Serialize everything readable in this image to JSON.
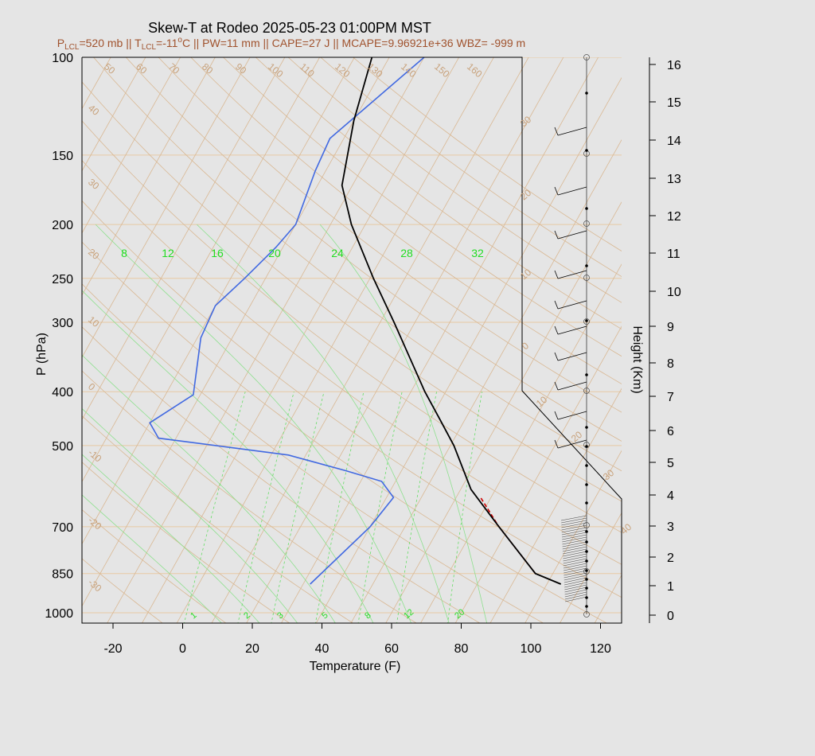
{
  "title": "Skew-T at Rodeo 2025-05-23 01:00PM MST",
  "subtitle": {
    "plcl_label": "P",
    "plcl_sub": "LCL",
    "plcl_val": "=520 mb || T",
    "tlcl_sub": "LCL",
    "tlcl_val": "=-11",
    "tlcl_sup": "o",
    "rest": "C || PW=11 mm || CAPE=27 J || MCAPE=9.96921e+36 WBZ= -999 m"
  },
  "colors": {
    "background": "#e5e5e5",
    "temperature": "#000000",
    "dewpoint": "#4169e1",
    "parcel": "#cc0000",
    "mixing_ratio": "#22dd22",
    "adiabats": "#d2b48c",
    "subtitle": "#a0522d"
  },
  "chart_data": {
    "type": "skew-t",
    "title": "Skew-T at Rodeo 2025-05-23 01:00PM MST",
    "xlabel": "Temperature (F)",
    "ylabel": "P (hPa)",
    "y2label": "Height (Km)",
    "x_ticks": [
      "-20",
      "0",
      "20",
      "40",
      "60",
      "80",
      "100",
      "120"
    ],
    "x_tick_values": [
      -20,
      0,
      20,
      40,
      60,
      80,
      100,
      120
    ],
    "p_ticks": [
      "100",
      "150",
      "200",
      "250",
      "300",
      "400",
      "500",
      "700",
      "850",
      "1000"
    ],
    "p_tick_values": [
      100,
      150,
      200,
      250,
      300,
      400,
      500,
      700,
      850,
      1000
    ],
    "height_ticks": [
      "0",
      "1",
      "2",
      "3",
      "4",
      "5",
      "6",
      "7",
      "8",
      "9",
      "10",
      "11",
      "12",
      "13",
      "14",
      "15",
      "16"
    ],
    "temperature_profile": [
      {
        "p": 888,
        "t": 104
      },
      {
        "p": 850,
        "t": 95
      },
      {
        "p": 700,
        "t": 77
      },
      {
        "p": 600,
        "t": 63
      },
      {
        "p": 500,
        "t": 51
      },
      {
        "p": 450,
        "t": 43
      },
      {
        "p": 400,
        "t": 34
      },
      {
        "p": 300,
        "t": 14
      },
      {
        "p": 250,
        "t": 1
      },
      {
        "p": 200,
        "t": -14
      },
      {
        "p": 170,
        "t": -23
      },
      {
        "p": 130,
        "t": -30
      },
      {
        "p": 100,
        "t": -35
      }
    ],
    "dewpoint_profile": [
      {
        "p": 888,
        "t": 32
      },
      {
        "p": 700,
        "t": 40
      },
      {
        "p": 620,
        "t": 42
      },
      {
        "p": 580,
        "t": 36
      },
      {
        "p": 555,
        "t": 24
      },
      {
        "p": 520,
        "t": 5
      },
      {
        "p": 485,
        "t": -35
      },
      {
        "p": 455,
        "t": -40
      },
      {
        "p": 405,
        "t": -32
      },
      {
        "p": 320,
        "t": -39
      },
      {
        "p": 280,
        "t": -40
      },
      {
        "p": 250,
        "t": -36
      },
      {
        "p": 220,
        "t": -32
      },
      {
        "p": 200,
        "t": -30
      },
      {
        "p": 160,
        "t": -33
      },
      {
        "p": 140,
        "t": -34
      },
      {
        "p": 100,
        "t": -20
      }
    ],
    "parcel_profile": [
      {
        "p": 850,
        "t": 95
      },
      {
        "p": 700,
        "t": 77
      },
      {
        "p": 620,
        "t": 67
      }
    ],
    "isotherm_labels_left": [
      "40",
      "30",
      "20",
      "10",
      "0",
      "-10",
      "-20",
      "-30"
    ],
    "isotherm_labels_top": [
      "50",
      "60",
      "70",
      "80",
      "90",
      "100",
      "110",
      "120",
      "130",
      "140",
      "150",
      "160"
    ],
    "adiabat_labels_right": [
      "30",
      "20",
      "10",
      "0",
      "10",
      "20",
      "30",
      "40"
    ],
    "mixing_ratio_labels_top": [
      "8",
      "12",
      "16",
      "20",
      "24",
      "28",
      "32"
    ],
    "mixing_ratio_labels_bottom": [
      "1",
      "2",
      "3",
      "5",
      "8",
      "12",
      "20"
    ]
  }
}
